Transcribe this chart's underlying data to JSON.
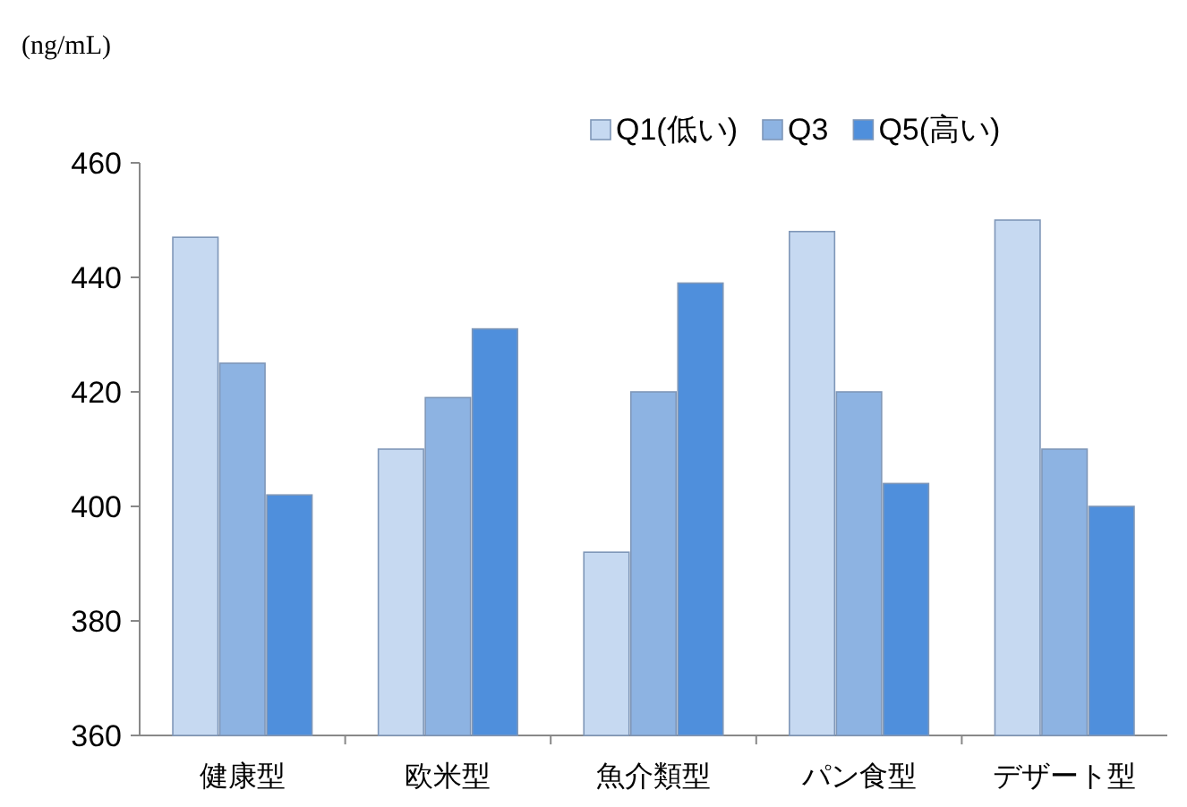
{
  "chart_data": {
    "type": "bar",
    "ylabel": "(ng/mL)",
    "categories": [
      "健康型",
      "欧米型",
      "魚介類型",
      "パン食型",
      "デザート型"
    ],
    "series": [
      {
        "name": "Q1(低い)",
        "color": "#c6d9f1",
        "values": [
          447,
          410,
          392,
          448,
          450
        ]
      },
      {
        "name": "Q3",
        "color": "#8db3e2",
        "values": [
          425,
          419,
          420,
          420,
          410
        ]
      },
      {
        "name": "Q5(高い)",
        "color": "#4f8fdc",
        "values": [
          402,
          431,
          439,
          404,
          400
        ]
      }
    ],
    "ylim": [
      360,
      460
    ],
    "yticks": [
      360,
      380,
      400,
      420,
      440,
      460
    ],
    "grid": false,
    "legend": "top right"
  }
}
